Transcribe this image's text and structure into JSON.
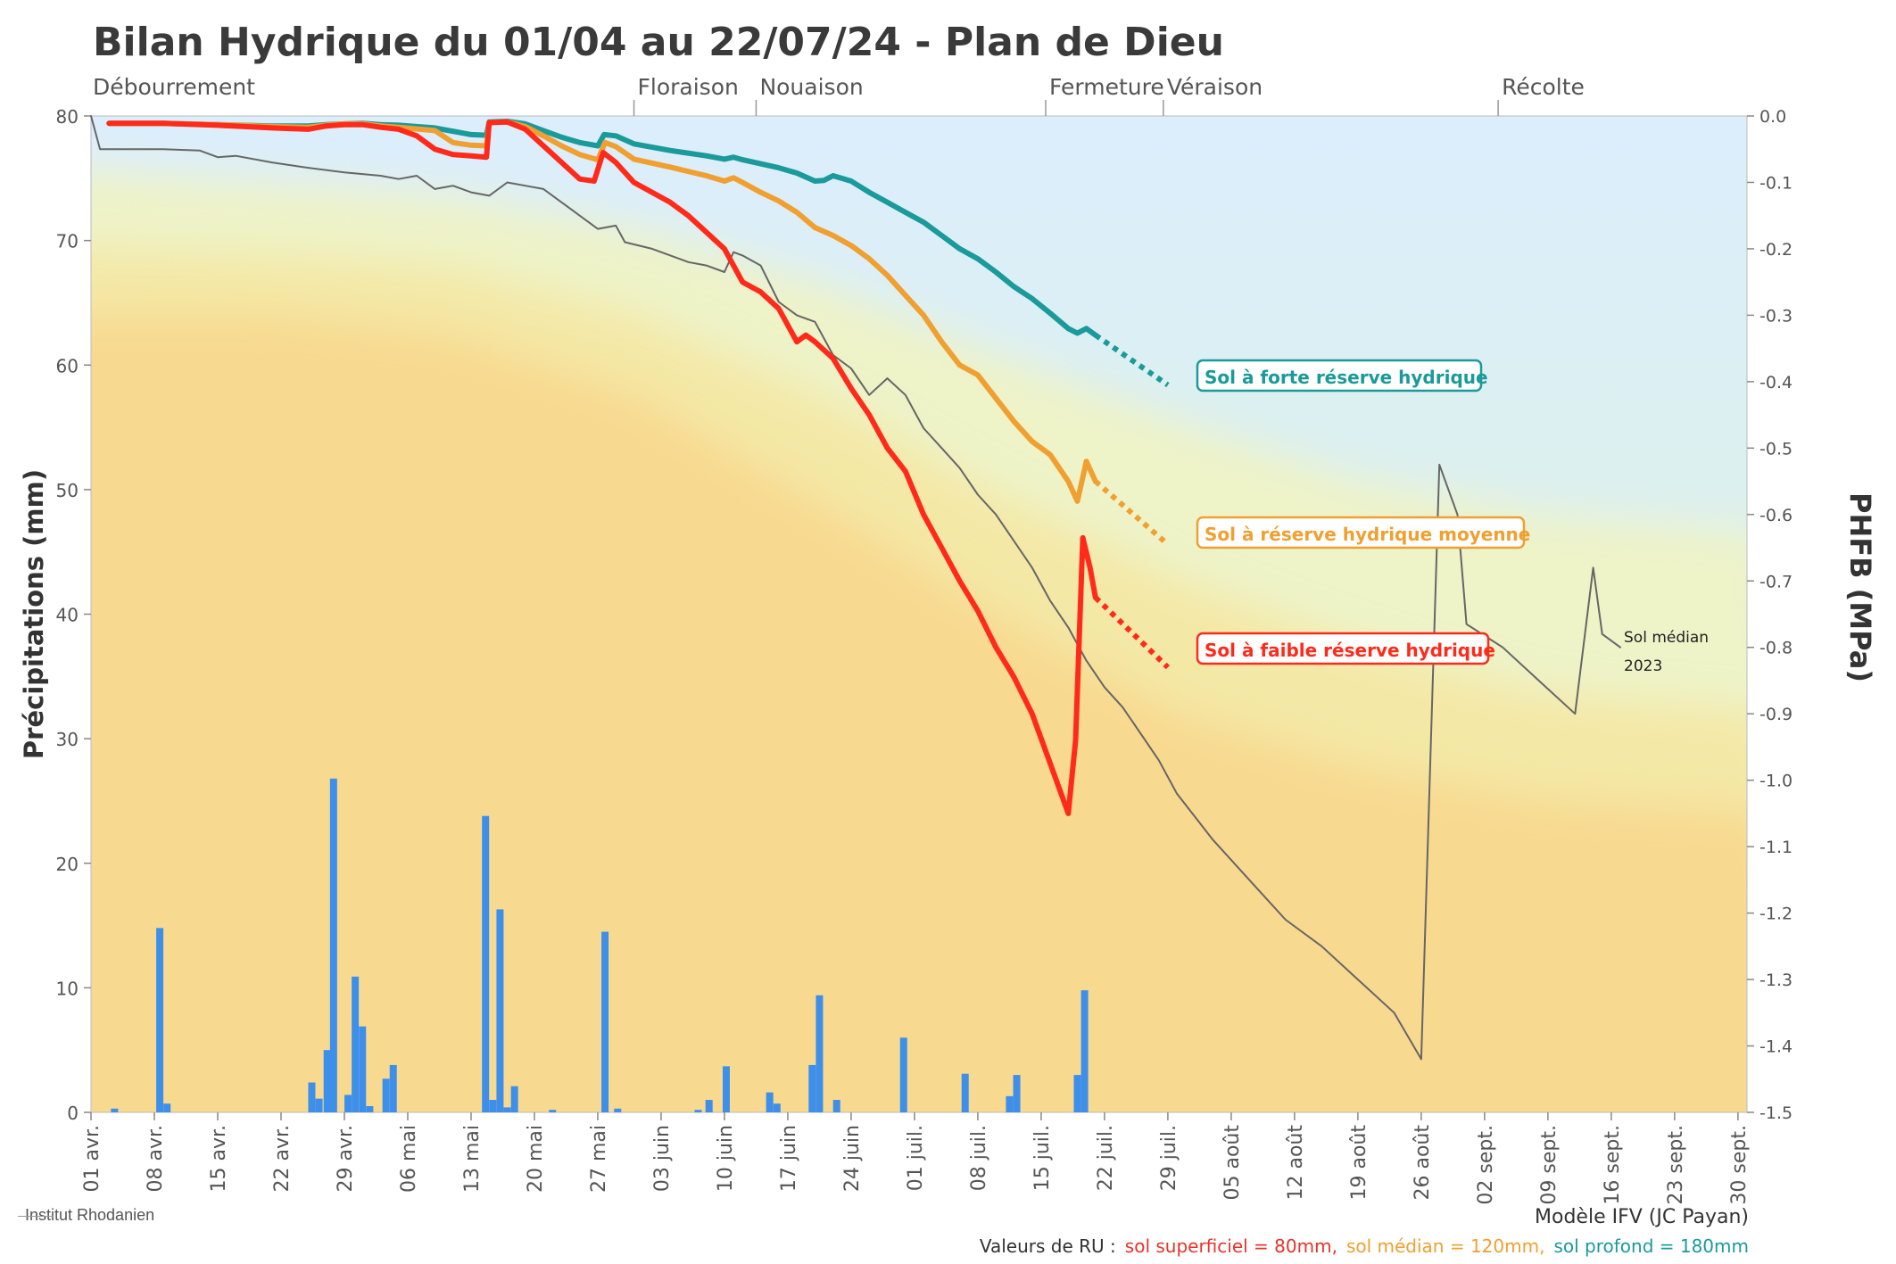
{
  "title": "Bilan Hydrique du 01/04 au 22/07/24 - Plan de Dieu",
  "footer": {
    "logo": "Institut Rhodanien",
    "model": "Modèle IFV (JC Payan)",
    "ru_prefix": "Valeurs de RU :",
    "ru_superficiel": "sol superficiel = 80mm,",
    "ru_median": "sol médian = 120mm,",
    "ru_profond": "sol profond = 180mm",
    "color_superficiel": "#e8332a",
    "color_median": "#f0a030",
    "color_profond": "#1a9a9a"
  },
  "chart_data": {
    "type": "line",
    "title": "Bilan Hydrique du 01/04 au 22/07/24 - Plan de Dieu",
    "ylabel": "Précipitations (mm)",
    "y2label": "PHFB (MPa)",
    "ylim": [
      0,
      80
    ],
    "y2lim": [
      -1.5,
      0
    ],
    "xlim": [
      0,
      183
    ],
    "x_unit": "days since 01 avr.",
    "yticks": [
      0,
      10,
      20,
      30,
      40,
      50,
      60,
      70,
      80
    ],
    "y2ticks": [
      "0.0",
      "-0.1",
      "-0.2",
      "-0.3",
      "-0.4",
      "-0.5",
      "-0.6",
      "-0.7",
      "-0.8",
      "-0.9",
      "-1.0",
      "-1.1",
      "-1.2",
      "-1.3",
      "-1.4",
      "-1.5"
    ],
    "xticks": [
      {
        "day": 0,
        "label": "01 avr."
      },
      {
        "day": 7,
        "label": "08 avr."
      },
      {
        "day": 14,
        "label": "15 avr."
      },
      {
        "day": 21,
        "label": "22 avr."
      },
      {
        "day": 28,
        "label": "29 avr."
      },
      {
        "day": 35,
        "label": "06 mai"
      },
      {
        "day": 42,
        "label": "13 mai"
      },
      {
        "day": 49,
        "label": "20 mai"
      },
      {
        "day": 56,
        "label": "27 mai"
      },
      {
        "day": 63,
        "label": "03 juin"
      },
      {
        "day": 70,
        "label": "10 juin"
      },
      {
        "day": 77,
        "label": "17 juin"
      },
      {
        "day": 84,
        "label": "24 juin"
      },
      {
        "day": 91,
        "label": "01 juil."
      },
      {
        "day": 98,
        "label": "08 juil."
      },
      {
        "day": 105,
        "label": "15 juil."
      },
      {
        "day": 112,
        "label": "22 juil."
      },
      {
        "day": 119,
        "label": "29 juil."
      },
      {
        "day": 126,
        "label": "05 août"
      },
      {
        "day": 133,
        "label": "12 août"
      },
      {
        "day": 140,
        "label": "19 août"
      },
      {
        "day": 147,
        "label": "26 août"
      },
      {
        "day": 154,
        "label": "02 sept."
      },
      {
        "day": 161,
        "label": "09 sept."
      },
      {
        "day": 168,
        "label": "16 sept."
      },
      {
        "day": 175,
        "label": "23 sept."
      },
      {
        "day": 182,
        "label": "30 sept."
      }
    ],
    "stages": [
      {
        "day": 0,
        "label": "Débourrement"
      },
      {
        "day": 60,
        "label": "Floraison"
      },
      {
        "day": 73.5,
        "label": "Nouaison"
      },
      {
        "day": 105.5,
        "label": "Fermeture"
      },
      {
        "day": 118.5,
        "label": "Véraison"
      },
      {
        "day": 155.5,
        "label": "Récolte"
      }
    ],
    "precipitation": {
      "name": "Précipitations (mm)",
      "color": "#3d8fea",
      "bars": [
        [
          2.6,
          0.3
        ],
        [
          7.6,
          14.8
        ],
        [
          8.4,
          0.7
        ],
        [
          24.4,
          2.4
        ],
        [
          25.2,
          1.1
        ],
        [
          26.1,
          5.0
        ],
        [
          26.8,
          26.8
        ],
        [
          28.4,
          1.4
        ],
        [
          29.2,
          10.9
        ],
        [
          30.0,
          6.9
        ],
        [
          30.8,
          0.5
        ],
        [
          32.6,
          2.7
        ],
        [
          33.4,
          3.8
        ],
        [
          43.6,
          23.8
        ],
        [
          44.4,
          1.0
        ],
        [
          45.2,
          16.3
        ],
        [
          46.0,
          0.4
        ],
        [
          46.8,
          2.1
        ],
        [
          51.0,
          0.2
        ],
        [
          56.8,
          14.5
        ],
        [
          58.2,
          0.3
        ],
        [
          67.1,
          0.2
        ],
        [
          68.3,
          1.0
        ],
        [
          70.2,
          3.7
        ],
        [
          75.0,
          1.6
        ],
        [
          75.8,
          0.7
        ],
        [
          79.7,
          3.8
        ],
        [
          80.5,
          9.4
        ],
        [
          82.4,
          1.0
        ],
        [
          89.8,
          6.0
        ],
        [
          96.6,
          3.1
        ],
        [
          101.5,
          1.3
        ],
        [
          102.3,
          3.0
        ],
        [
          109.0,
          3.0
        ],
        [
          109.8,
          9.8
        ]
      ]
    },
    "series": [
      {
        "name": "Sol à forte réserve hydrique",
        "color": "#1a9a9a",
        "unit": "MPa",
        "observed": [
          [
            2,
            -0.011
          ],
          [
            8,
            -0.011
          ],
          [
            10,
            -0.012
          ],
          [
            14,
            -0.013
          ],
          [
            20,
            -0.015
          ],
          [
            24,
            -0.015
          ],
          [
            26,
            -0.013
          ],
          [
            28,
            -0.012
          ],
          [
            30,
            -0.011
          ],
          [
            32,
            -0.013
          ],
          [
            34,
            -0.014
          ],
          [
            38,
            -0.018
          ],
          [
            42,
            -0.028
          ],
          [
            43.7,
            -0.029
          ],
          [
            44,
            -0.009
          ],
          [
            46,
            -0.008
          ],
          [
            48,
            -0.012
          ],
          [
            50,
            -0.022
          ],
          [
            52,
            -0.032
          ],
          [
            54,
            -0.04
          ],
          [
            56,
            -0.045
          ],
          [
            56.7,
            -0.028
          ],
          [
            58,
            -0.03
          ],
          [
            60,
            -0.042
          ],
          [
            64,
            -0.052
          ],
          [
            68,
            -0.06
          ],
          [
            70,
            -0.065
          ],
          [
            71,
            -0.062
          ],
          [
            72,
            -0.066
          ],
          [
            74,
            -0.072
          ],
          [
            76,
            -0.078
          ],
          [
            78,
            -0.086
          ],
          [
            80,
            -0.098
          ],
          [
            81,
            -0.097
          ],
          [
            82,
            -0.09
          ],
          [
            84,
            -0.098
          ],
          [
            86,
            -0.115
          ],
          [
            88,
            -0.13
          ],
          [
            90,
            -0.145
          ],
          [
            92,
            -0.16
          ],
          [
            94,
            -0.18
          ],
          [
            96,
            -0.2
          ],
          [
            98,
            -0.215
          ],
          [
            100,
            -0.235
          ],
          [
            102,
            -0.257
          ],
          [
            104,
            -0.275
          ],
          [
            106,
            -0.297
          ],
          [
            108,
            -0.32
          ],
          [
            109,
            -0.327
          ],
          [
            110,
            -0.32
          ],
          [
            111,
            -0.33
          ]
        ],
        "forecast": [
          [
            111,
            -0.33
          ],
          [
            119,
            -0.405
          ]
        ],
        "label": "Sol à forte réserve hydrique"
      },
      {
        "name": "Sol à réserve hydrique moyenne",
        "color": "#f0a030",
        "unit": "MPa",
        "observed": [
          [
            2,
            -0.011
          ],
          [
            8,
            -0.011
          ],
          [
            14,
            -0.013
          ],
          [
            20,
            -0.016
          ],
          [
            24,
            -0.017
          ],
          [
            26,
            -0.014
          ],
          [
            28,
            -0.012
          ],
          [
            30,
            -0.012
          ],
          [
            32,
            -0.015
          ],
          [
            34,
            -0.017
          ],
          [
            38,
            -0.022
          ],
          [
            40,
            -0.04
          ],
          [
            42,
            -0.044
          ],
          [
            43.7,
            -0.045
          ],
          [
            44,
            -0.01
          ],
          [
            46,
            -0.009
          ],
          [
            48,
            -0.016
          ],
          [
            50,
            -0.03
          ],
          [
            52,
            -0.045
          ],
          [
            54,
            -0.058
          ],
          [
            56,
            -0.066
          ],
          [
            56.8,
            -0.04
          ],
          [
            58,
            -0.046
          ],
          [
            60,
            -0.065
          ],
          [
            64,
            -0.077
          ],
          [
            68,
            -0.09
          ],
          [
            70,
            -0.098
          ],
          [
            71,
            -0.093
          ],
          [
            72,
            -0.1
          ],
          [
            74,
            -0.115
          ],
          [
            76,
            -0.128
          ],
          [
            78,
            -0.145
          ],
          [
            80,
            -0.168
          ],
          [
            82,
            -0.18
          ],
          [
            84,
            -0.195
          ],
          [
            86,
            -0.215
          ],
          [
            88,
            -0.24
          ],
          [
            90,
            -0.27
          ],
          [
            92,
            -0.3
          ],
          [
            94,
            -0.34
          ],
          [
            96,
            -0.375
          ],
          [
            98,
            -0.39
          ],
          [
            100,
            -0.425
          ],
          [
            102,
            -0.46
          ],
          [
            104,
            -0.49
          ],
          [
            106,
            -0.51
          ],
          [
            108,
            -0.55
          ],
          [
            109,
            -0.58
          ],
          [
            110,
            -0.52
          ],
          [
            111,
            -0.55
          ]
        ],
        "forecast": [
          [
            111,
            -0.55
          ],
          [
            119,
            -0.645
          ]
        ],
        "label": "Sol à réserve hydrique moyenne"
      },
      {
        "name": "Sol à faible réserve hydrique",
        "color": "#ff2a1a",
        "unit": "MPa",
        "observed": [
          [
            2,
            -0.011
          ],
          [
            8,
            -0.011
          ],
          [
            14,
            -0.014
          ],
          [
            20,
            -0.018
          ],
          [
            24,
            -0.02
          ],
          [
            26,
            -0.015
          ],
          [
            28,
            -0.013
          ],
          [
            30,
            -0.013
          ],
          [
            32,
            -0.017
          ],
          [
            34,
            -0.02
          ],
          [
            36,
            -0.03
          ],
          [
            38,
            -0.05
          ],
          [
            40,
            -0.058
          ],
          [
            42,
            -0.06
          ],
          [
            43.7,
            -0.062
          ],
          [
            44,
            -0.01
          ],
          [
            46,
            -0.009
          ],
          [
            48,
            -0.02
          ],
          [
            50,
            -0.045
          ],
          [
            52,
            -0.07
          ],
          [
            54,
            -0.095
          ],
          [
            55.6,
            -0.098
          ],
          [
            56.6,
            -0.055
          ],
          [
            58,
            -0.07
          ],
          [
            60,
            -0.1
          ],
          [
            62,
            -0.115
          ],
          [
            64,
            -0.13
          ],
          [
            66,
            -0.15
          ],
          [
            68,
            -0.175
          ],
          [
            70,
            -0.2
          ],
          [
            72,
            -0.25
          ],
          [
            74,
            -0.265
          ],
          [
            76,
            -0.29
          ],
          [
            78,
            -0.34
          ],
          [
            79,
            -0.33
          ],
          [
            80,
            -0.34
          ],
          [
            82,
            -0.365
          ],
          [
            84,
            -0.41
          ],
          [
            86,
            -0.45
          ],
          [
            88,
            -0.5
          ],
          [
            90,
            -0.535
          ],
          [
            92,
            -0.6
          ],
          [
            94,
            -0.65
          ],
          [
            96,
            -0.7
          ],
          [
            98,
            -0.745
          ],
          [
            100,
            -0.8
          ],
          [
            102,
            -0.845
          ],
          [
            104,
            -0.9
          ],
          [
            106,
            -0.975
          ],
          [
            108,
            -1.05
          ],
          [
            108.8,
            -0.94
          ],
          [
            109.6,
            -0.635
          ],
          [
            110.4,
            -0.68
          ],
          [
            111,
            -0.725
          ]
        ],
        "forecast": [
          [
            111,
            -0.725
          ],
          [
            119,
            -0.83
          ]
        ],
        "label": "Sol à faible réserve hydrique"
      },
      {
        "name": "Sol médian 2023",
        "color": "#666666",
        "unit": "MPa",
        "observed": [
          [
            0,
            0.0
          ],
          [
            1,
            -0.05
          ],
          [
            4,
            -0.05
          ],
          [
            8,
            -0.05
          ],
          [
            12,
            -0.052
          ],
          [
            14,
            -0.062
          ],
          [
            16,
            -0.06
          ],
          [
            20,
            -0.07
          ],
          [
            24,
            -0.078
          ],
          [
            28,
            -0.085
          ],
          [
            32,
            -0.09
          ],
          [
            34,
            -0.095
          ],
          [
            36,
            -0.09
          ],
          [
            38,
            -0.11
          ],
          [
            40,
            -0.105
          ],
          [
            42,
            -0.115
          ],
          [
            44,
            -0.12
          ],
          [
            46,
            -0.1
          ],
          [
            48,
            -0.105
          ],
          [
            50,
            -0.11
          ],
          [
            52,
            -0.13
          ],
          [
            54,
            -0.15
          ],
          [
            56,
            -0.17
          ],
          [
            58,
            -0.165
          ],
          [
            59,
            -0.19
          ],
          [
            62,
            -0.2
          ],
          [
            66,
            -0.22
          ],
          [
            68,
            -0.225
          ],
          [
            70,
            -0.235
          ],
          [
            71,
            -0.205
          ],
          [
            72,
            -0.21
          ],
          [
            74,
            -0.225
          ],
          [
            76,
            -0.28
          ],
          [
            78,
            -0.3
          ],
          [
            80,
            -0.31
          ],
          [
            82,
            -0.36
          ],
          [
            84,
            -0.38
          ],
          [
            86,
            -0.42
          ],
          [
            88,
            -0.395
          ],
          [
            90,
            -0.42
          ],
          [
            92,
            -0.47
          ],
          [
            94,
            -0.5
          ],
          [
            96,
            -0.53
          ],
          [
            98,
            -0.57
          ],
          [
            100,
            -0.6
          ],
          [
            102,
            -0.64
          ],
          [
            104,
            -0.68
          ],
          [
            106,
            -0.73
          ],
          [
            108,
            -0.77
          ],
          [
            110,
            -0.82
          ],
          [
            112,
            -0.86
          ],
          [
            114,
            -0.89
          ],
          [
            116,
            -0.93
          ],
          [
            118,
            -0.97
          ],
          [
            120,
            -1.02
          ],
          [
            124,
            -1.09
          ],
          [
            128,
            -1.15
          ],
          [
            132,
            -1.21
          ],
          [
            136,
            -1.25
          ],
          [
            140,
            -1.3
          ],
          [
            144,
            -1.35
          ],
          [
            147,
            -1.42
          ],
          [
            149,
            -0.525
          ],
          [
            151,
            -0.6
          ],
          [
            152,
            -0.765
          ],
          [
            156,
            -0.8
          ],
          [
            160,
            -0.85
          ],
          [
            164,
            -0.9
          ],
          [
            166,
            -0.68
          ],
          [
            167,
            -0.78
          ],
          [
            169,
            -0.8
          ]
        ],
        "label": "Sol médian",
        "label2": "2023"
      }
    ]
  }
}
